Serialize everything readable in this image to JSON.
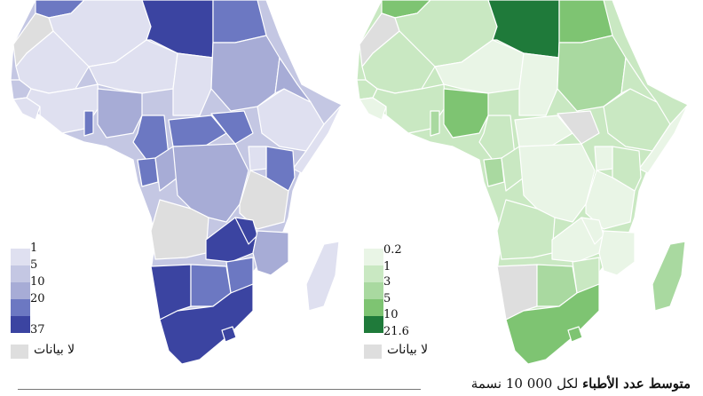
{
  "caption": {
    "title": "متوسط عدد الأطباء",
    "subtitle": "لكل 000 10 نسمة"
  },
  "maps": [
    {
      "legend": {
        "ticks": [
          "1",
          "5",
          "10",
          "20",
          "37"
        ],
        "colors": [
          "#dfe0f0",
          "#c4c7e3",
          "#a7acd6",
          "#6c78c2",
          "#3b44a1"
        ],
        "no_data_label": "لا بيانات",
        "no_data_color": "#dedede"
      }
    },
    {
      "legend": {
        "ticks": [
          "0.2",
          "1",
          "3",
          "5",
          "10",
          "21.6"
        ],
        "colors": [
          "#e9f5e6",
          "#c9e8c2",
          "#a9d9a0",
          "#7ec472",
          "#4fa94a",
          "#1f7a3a"
        ],
        "no_data_label": "لا بيانات",
        "no_data_color": "#dedede"
      }
    }
  ]
}
